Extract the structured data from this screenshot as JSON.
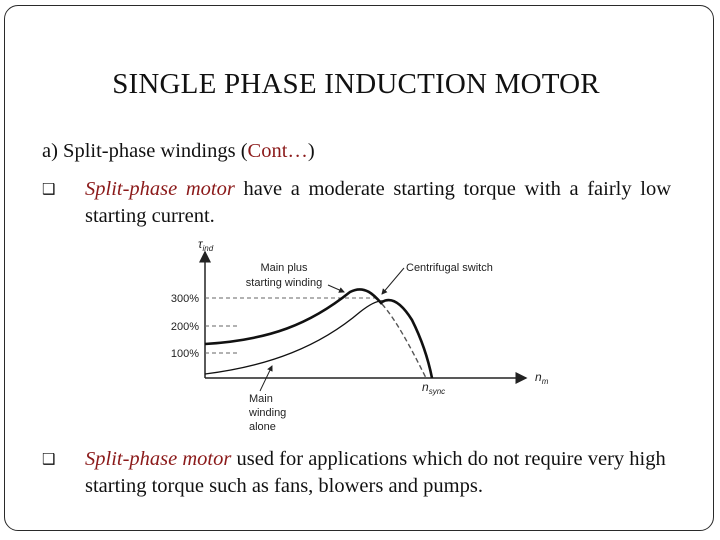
{
  "slide": {
    "title": "SINGLE PHASE INDUCTION MOTOR",
    "subheading": {
      "prefix": "a) Split-phase windings (",
      "accent": "Cont…",
      "suffix": ")"
    },
    "bullets": [
      {
        "emphasis": "Split-phase motor",
        "text": " have a moderate starting torque with a fairly low starting current."
      },
      {
        "emphasis": "Split-phase motor",
        "text": " used for applications which do not require very high starting torque such as fans, blowers and pumps."
      }
    ]
  },
  "figure": {
    "y_axis_label": "τ",
    "y_axis_subscript": "ind",
    "x_axis_label": "n",
    "x_axis_subscript": "m",
    "y_ticks": [
      "300%",
      "200%",
      "100%"
    ],
    "sync_label": "n",
    "sync_subscript": "sync",
    "annotation_main_plus": [
      "Main plus",
      "starting winding"
    ],
    "annotation_switch": "Centrifugal switch",
    "annotation_main_alone": [
      "Main",
      "winding",
      "alone"
    ]
  },
  "colors": {
    "accent": "#8b1a1a",
    "text": "#111111",
    "frame": "#2a2a2a"
  }
}
